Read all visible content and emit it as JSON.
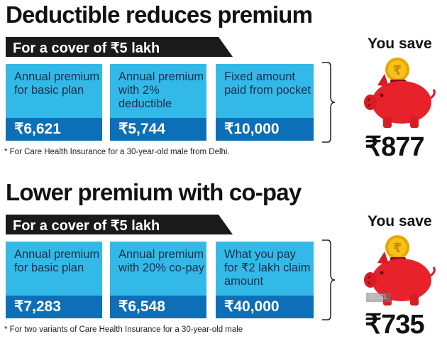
{
  "sections": [
    {
      "title": "Deductible reduces premium",
      "banner": "For a cover of ₹5 lakh",
      "boxes": [
        {
          "label": "Annual premium for basic plan",
          "value": "₹6,621"
        },
        {
          "label": "Annual premium with 2% deductible",
          "value": "₹5,744"
        },
        {
          "label": "Fixed amount paid from pocket",
          "value": "₹10,000"
        }
      ],
      "note": "* For Care Health Insurance for a 30-year-old male from Delhi.",
      "you_save_label": "You save",
      "saved_amount": "₹877"
    },
    {
      "title": "Lower premium with co-pay",
      "banner": "For a cover of ₹5 lakh",
      "boxes": [
        {
          "label": "Annual premium for basic plan",
          "value": "₹7,283"
        },
        {
          "label": "Annual premium with 20% co-pay",
          "value": "₹6,548"
        },
        {
          "label": "What you pay for ₹2 lakh claim amount",
          "value": "₹40,000"
        }
      ],
      "note": "* For two variants of Care Health Insurance for a 30-year-old male",
      "you_save_label": "You save",
      "saved_amount": "₹735"
    }
  ],
  "watermark": "BCCL",
  "colors": {
    "box_light": "#33b9e8",
    "box_dark": "#0c6fb8",
    "banner": "#1a1a1a",
    "pig": "#e8222b",
    "coin": "#f5b400"
  },
  "icons": [
    "piggy-bank-icon",
    "rupee-coin-icon",
    "bracket-icon"
  ]
}
